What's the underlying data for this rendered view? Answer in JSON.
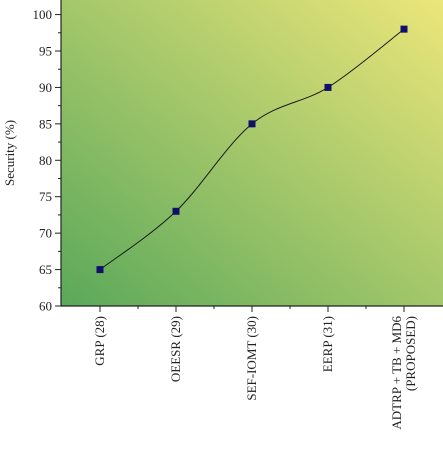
{
  "chart_data": {
    "type": "line",
    "title": "",
    "xlabel": "",
    "ylabel": "Security (%)",
    "categories": [
      "GRP (28)",
      "OEESR (29)",
      "SEF-IOMT (30)",
      "EERP (31)",
      "ADTRP + TB + MD6 (PROPOSED)"
    ],
    "category_lines": [
      [
        "GRP (28)"
      ],
      [
        "OEESR (29)"
      ],
      [
        "SEF-IOMT (30)"
      ],
      [
        "EERP (31)"
      ],
      [
        "ADTRP + TB + MD6",
        "(PROPOSED)"
      ]
    ],
    "values": [
      65,
      73,
      85,
      90,
      98
    ],
    "ylim": [
      60,
      102
    ],
    "yticks": [
      60,
      65,
      70,
      75,
      80,
      85,
      90,
      95,
      100
    ],
    "grid": false,
    "smooth": true,
    "colors": {
      "background_start": "#5aa85a",
      "background_end": "#ece67a",
      "line": "#1a1a1a",
      "marker": "#10106a",
      "axis": "#222222"
    }
  }
}
